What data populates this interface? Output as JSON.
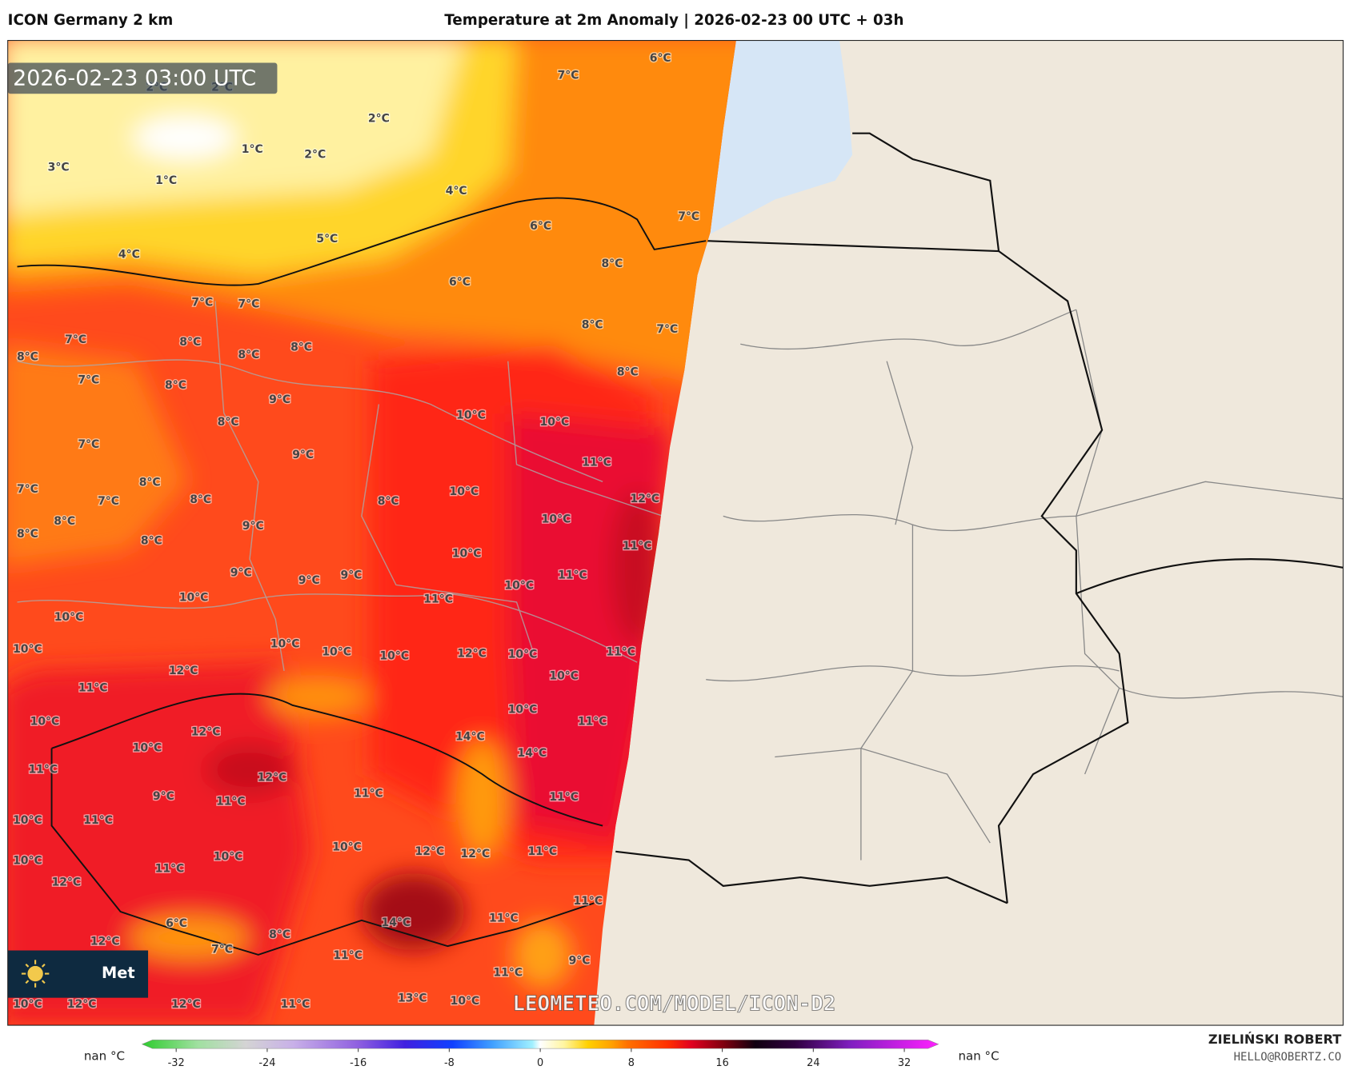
{
  "header": {
    "model": "ICON Germany 2 km",
    "title": "Temperature at 2m Anomaly | 2026-02-23 00 UTC + 03h"
  },
  "map": {
    "timestamp": "2026-02-23 03:00 UTC",
    "watermark": "LEOMETEO.COM/MODEL/ICON-D2",
    "logo_text": "Met",
    "labels": [
      "2°C",
      "2°C",
      "2°C",
      "1°C",
      "2°C",
      "3°C",
      "1°C",
      "7°C",
      "6°C",
      "4°C",
      "5°C",
      "6°C",
      "7°C",
      "4°C",
      "8°C",
      "6°C",
      "7°C",
      "7°C",
      "8°C",
      "7°C",
      "8°C",
      "7°C",
      "8°C",
      "8°C",
      "8°C",
      "7°C",
      "8°C",
      "8°C",
      "9°C",
      "10°C",
      "10°C",
      "8°C",
      "7°C",
      "9°C",
      "11°C",
      "8°C",
      "7°C",
      "7°C",
      "8°C",
      "10°C",
      "8°C",
      "12°C",
      "8°C",
      "9°C",
      "10°C",
      "8°C",
      "8°C",
      "11°C",
      "10°C",
      "9°C",
      "9°C",
      "9°C",
      "11°C",
      "10°C",
      "10°C",
      "11°C",
      "10°C",
      "10°C",
      "10°C",
      "10°C",
      "10°C",
      "12°C",
      "10°C",
      "11°C",
      "12°C",
      "10°C",
      "11°C",
      "10°C",
      "10°C",
      "11°C",
      "12°C",
      "14°C",
      "10°C",
      "14°C",
      "11°C",
      "12°C",
      "9°C",
      "11°C",
      "11°C",
      "11°C",
      "11°C",
      "10°C",
      "10°C",
      "12°C",
      "12°C",
      "11°C",
      "10°C",
      "10°C",
      "11°C",
      "12°C",
      "11°C",
      "14°C",
      "11°C",
      "6°C",
      "8°C",
      "12°C",
      "7°C",
      "11°C",
      "9°C",
      "11°C",
      "13°C",
      "10°C",
      "10°C",
      "12°C",
      "12°C",
      "11°C"
    ]
  },
  "colorbar": {
    "range": [
      -35,
      35
    ],
    "ticks": [
      -32,
      -24,
      -16,
      -8,
      0,
      8,
      16,
      24,
      32
    ],
    "min_label": "nan °C",
    "max_label": "nan °C"
  },
  "credit": {
    "author": "ZIELIŃSKI ROBERT",
    "email": "HELLO@ROBERTZ.CO"
  }
}
